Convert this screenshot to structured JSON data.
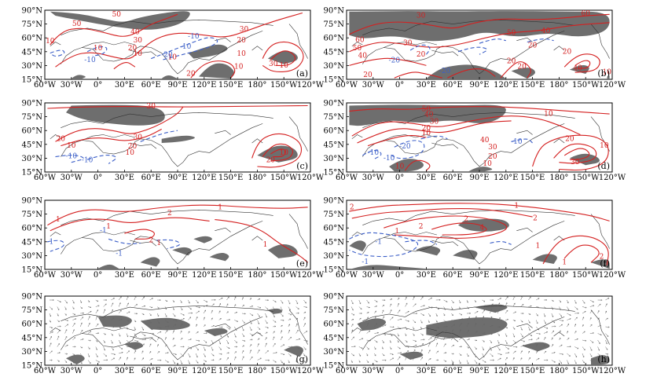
{
  "figure": {
    "lon_labels": [
      "60°W",
      "30°W",
      "0°",
      "30°E",
      "60°E",
      "90°E",
      "120°E",
      "150°E",
      "180°",
      "150°W",
      "120°W"
    ],
    "lat_labels": [
      "90°N",
      "75°N",
      "60°N",
      "45°N",
      "30°N",
      "15°N"
    ],
    "colors": {
      "positive_contour": "#d42020",
      "negative_contour": "#3c5fc8",
      "significance_shading": "#6e6e6e",
      "coastline": "#333333",
      "vector": "#666666"
    },
    "panels": [
      {
        "label": "(a)",
        "contour_labels": [
          {
            "text": "50",
            "sign": "pos"
          },
          {
            "text": "50",
            "sign": "pos"
          },
          {
            "text": "30",
            "sign": "pos"
          },
          {
            "text": "20",
            "sign": "pos"
          },
          {
            "text": "10",
            "sign": "pos"
          },
          {
            "text": "10",
            "sign": "pos"
          },
          {
            "text": "40",
            "sign": "pos"
          },
          {
            "text": "30",
            "sign": "pos"
          },
          {
            "text": "20",
            "sign": "pos"
          },
          {
            "text": "10",
            "sign": "pos"
          },
          {
            "text": "10",
            "sign": "pos"
          },
          {
            "text": "-10",
            "sign": "neg"
          },
          {
            "text": "-10",
            "sign": "neg"
          },
          {
            "text": "-20",
            "sign": "neg"
          },
          {
            "text": "-10",
            "sign": "neg"
          },
          {
            "text": "10",
            "sign": "pos"
          },
          {
            "text": "20",
            "sign": "pos"
          },
          {
            "text": "10",
            "sign": "pos"
          },
          {
            "text": "30",
            "sign": "pos"
          },
          {
            "text": "10",
            "sign": "pos"
          }
        ]
      },
      {
        "label": "(b)",
        "contour_labels": [
          {
            "text": "30",
            "sign": "pos"
          },
          {
            "text": "60",
            "sign": "pos"
          },
          {
            "text": "50",
            "sign": "pos"
          },
          {
            "text": "40",
            "sign": "pos"
          },
          {
            "text": "20",
            "sign": "pos"
          },
          {
            "text": "60",
            "sign": "pos"
          },
          {
            "text": "50",
            "sign": "pos"
          },
          {
            "text": "40",
            "sign": "pos"
          },
          {
            "text": "30",
            "sign": "pos"
          },
          {
            "text": "20",
            "sign": "pos"
          },
          {
            "text": "-20",
            "sign": "neg"
          },
          {
            "text": "20",
            "sign": "pos"
          },
          {
            "text": "-20",
            "sign": "neg"
          },
          {
            "text": "20",
            "sign": "pos"
          },
          {
            "text": "20",
            "sign": "pos"
          },
          {
            "text": "20",
            "sign": "pos"
          },
          {
            "text": "40",
            "sign": "pos"
          },
          {
            "text": "10",
            "sign": "pos"
          }
        ]
      },
      {
        "label": "(c)",
        "contour_labels": [
          {
            "text": "30",
            "sign": "pos"
          },
          {
            "text": "20",
            "sign": "pos"
          },
          {
            "text": "10",
            "sign": "pos"
          },
          {
            "text": "30",
            "sign": "pos"
          },
          {
            "text": "20",
            "sign": "pos"
          },
          {
            "text": "10",
            "sign": "pos"
          },
          {
            "text": "-10",
            "sign": "neg"
          },
          {
            "text": "-10",
            "sign": "neg"
          },
          {
            "text": "20",
            "sign": "pos"
          },
          {
            "text": "10",
            "sign": "pos"
          }
        ]
      },
      {
        "label": "(d)",
        "contour_labels": [
          {
            "text": "10",
            "sign": "pos"
          },
          {
            "text": "50",
            "sign": "pos"
          },
          {
            "text": "40",
            "sign": "pos"
          },
          {
            "text": "30",
            "sign": "pos"
          },
          {
            "text": "20",
            "sign": "pos"
          },
          {
            "text": "10",
            "sign": "pos"
          },
          {
            "text": "40",
            "sign": "pos"
          },
          {
            "text": "30",
            "sign": "pos"
          },
          {
            "text": "20",
            "sign": "pos"
          },
          {
            "text": "10",
            "sign": "pos"
          },
          {
            "text": "-10",
            "sign": "neg"
          },
          {
            "text": "-20",
            "sign": "neg"
          },
          {
            "text": "-10",
            "sign": "neg"
          },
          {
            "text": "-10",
            "sign": "neg"
          },
          {
            "text": "10",
            "sign": "pos"
          },
          {
            "text": "20",
            "sign": "pos"
          },
          {
            "text": "30",
            "sign": "pos"
          },
          {
            "text": "10",
            "sign": "pos"
          }
        ]
      },
      {
        "label": "(e)",
        "contour_labels": [
          {
            "text": "1",
            "sign": "pos"
          },
          {
            "text": "1",
            "sign": "pos"
          },
          {
            "text": "2",
            "sign": "pos"
          },
          {
            "text": "1",
            "sign": "pos"
          },
          {
            "text": "-1",
            "sign": "neg"
          },
          {
            "text": "2",
            "sign": "pos"
          },
          {
            "text": "-1",
            "sign": "neg"
          },
          {
            "text": "-1",
            "sign": "neg"
          },
          {
            "text": "1",
            "sign": "pos"
          },
          {
            "text": "1",
            "sign": "pos"
          }
        ]
      },
      {
        "label": "(f)",
        "contour_labels": [
          {
            "text": "1",
            "sign": "pos"
          },
          {
            "text": "2",
            "sign": "pos"
          },
          {
            "text": "2",
            "sign": "pos"
          },
          {
            "text": "4",
            "sign": "pos"
          },
          {
            "text": "2",
            "sign": "pos"
          },
          {
            "text": "1",
            "sign": "pos"
          },
          {
            "text": "2",
            "sign": "pos"
          },
          {
            "text": "-1",
            "sign": "neg"
          },
          {
            "text": "-1",
            "sign": "neg"
          },
          {
            "text": "1",
            "sign": "pos"
          },
          {
            "text": "2",
            "sign": "pos"
          },
          {
            "text": "1",
            "sign": "pos"
          }
        ]
      },
      {
        "label": "(g)",
        "contour_labels": []
      },
      {
        "label": "(h)",
        "contour_labels": []
      }
    ]
  }
}
